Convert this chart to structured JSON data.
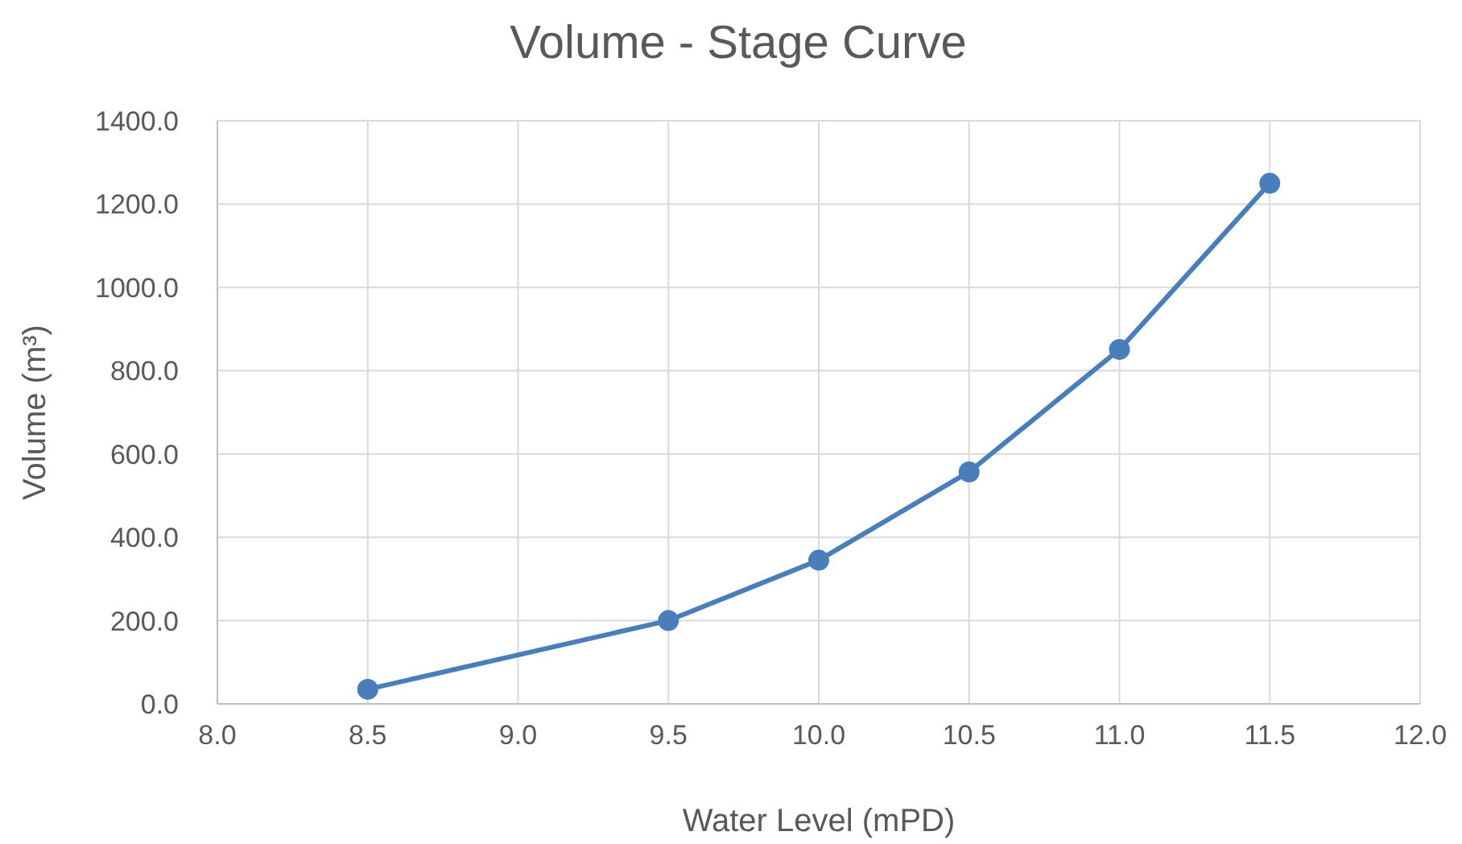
{
  "chart_data": {
    "type": "line",
    "title": "Volume - Stage Curve",
    "xlabel": "Water Level (mPD)",
    "ylabel": "Volume (m³)",
    "x": [
      8.5,
      9.5,
      10.0,
      10.5,
      11.0,
      11.5
    ],
    "series": [
      {
        "color": "#4a7ebb",
        "values": [
          35,
          200,
          345,
          557,
          851,
          1250
        ]
      }
    ],
    "xlim": [
      8,
      12
    ],
    "xticks": [
      {
        "value": 8,
        "label": "8.0"
      },
      {
        "value": 8.5,
        "label": "8.5"
      },
      {
        "value": 9,
        "label": "9.0"
      },
      {
        "value": 9.5,
        "label": "9.5"
      },
      {
        "value": 10,
        "label": "10.0"
      },
      {
        "value": 10.5,
        "label": "10.5"
      },
      {
        "value": 11,
        "label": "11.0"
      },
      {
        "value": 11.5,
        "label": "11.5"
      },
      {
        "value": 12,
        "label": "12.0"
      }
    ],
    "ylim": [
      0,
      1400
    ],
    "yticks": [
      {
        "value": 0,
        "label": "0.0"
      },
      {
        "value": 200,
        "label": "200.0"
      },
      {
        "value": 400,
        "label": "400.0"
      },
      {
        "value": 600,
        "label": "600.0"
      },
      {
        "value": 800,
        "label": "800.0"
      },
      {
        "value": 1000,
        "label": "1000.0"
      },
      {
        "value": 1200,
        "label": "1200.0"
      },
      {
        "value": 1400,
        "label": "1400.0"
      }
    ],
    "grid": true,
    "marker": "circle",
    "line_style": "solid"
  }
}
